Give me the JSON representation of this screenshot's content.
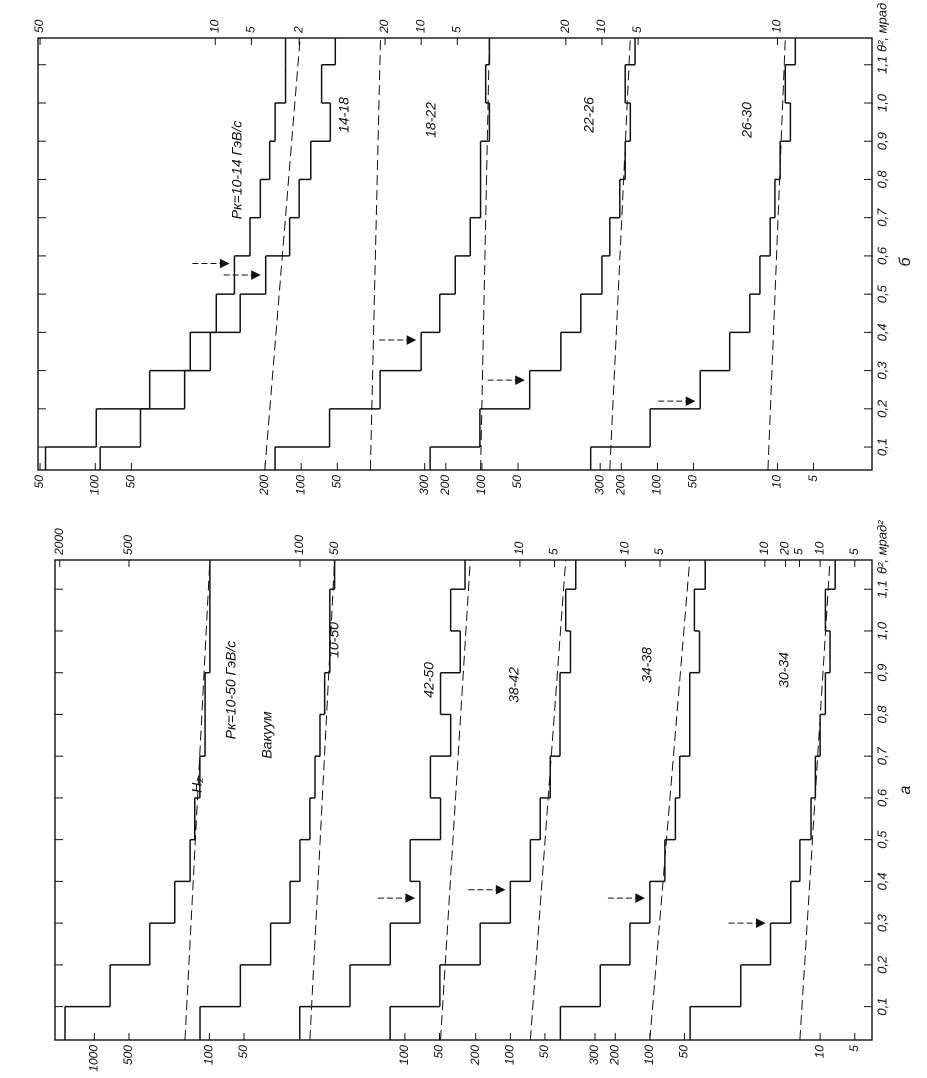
{
  "panels": [
    {
      "label": "б",
      "axis_label": "θ², мрад",
      "thlim": [
        0.04,
        1.17
      ],
      "thticks": [
        {
          "value": 0.1,
          "label": "0,1"
        },
        {
          "value": 0.2,
          "label": "0,2"
        },
        {
          "value": 0.3,
          "label": "0,3"
        },
        {
          "value": 0.4,
          "label": "0,4"
        },
        {
          "value": 0.5,
          "label": "0,5"
        },
        {
          "value": 0.6,
          "label": "0,6"
        },
        {
          "value": 0.7,
          "label": "0,7"
        },
        {
          "value": 0.8,
          "label": "0,8"
        },
        {
          "value": 0.9,
          "label": "0,9"
        },
        {
          "value": 1.0,
          "label": "1,0"
        },
        {
          "value": 1.1,
          "label": "1,1"
        }
      ],
      "bins": [
        0.04,
        0.1,
        0.2,
        0.3,
        0.4,
        0.5,
        0.6,
        0.7,
        0.8,
        0.9,
        1.0,
        1.1,
        1.17
      ],
      "plots": [
        {
          "labels": [
            "Pк=10-14 ГэВ/с"
          ],
          "lim": [
            52,
            5.84e-06
          ],
          "ticks": [
            50
          ],
          "top_ticks": [
            50
          ],
          "counts": [
            45,
            17,
            6.1,
            2.8,
            1.7,
            1.2,
            0.89,
            0.73,
            0.61,
            0.55,
            0.45,
            0.45
          ],
          "background": [
            0.67,
            0.34
          ],
          "arrow": 0.58
        },
        {
          "labels": [
            "14-18"
          ],
          "lim": [
            300,
            3.37e-05
          ],
          "ticks": [
            100,
            50
          ],
          "top_ticks": [
            10,
            5,
            2
          ],
          "counts": [
            91,
            42,
            18,
            11,
            6.2,
            3.8,
            2.4,
            2.0,
            1.6,
            1.1,
            1.3,
            1.0
          ],
          "background": [
            0.51,
            0.42
          ],
          "arrow": 0.55
        },
        {
          "labels": [
            "18-22"
          ],
          "lim": [
            15600,
            0.00175
          ],
          "ticks": [
            200,
            100,
            50
          ],
          "top_ticks": [
            20,
            10,
            5
          ],
          "counts": [
            165,
            58,
            22,
            10,
            7.0,
            5.2,
            3.9,
            3.2,
            3.2,
            2.7,
            2.9,
            2.7
          ],
          "background": [
            3.2,
            2.7
          ],
          "arrow": 0.38
        },
        {
          "labels": [
            "22-26"
          ],
          "lim": [
            500000,
            0.0562
          ],
          "ticks": [
            300,
            200,
            100,
            50
          ],
          "top_ticks": [
            20,
            10,
            5
          ],
          "counts": [
            270,
            104,
            40,
            22,
            15,
            10,
            8.6,
            7.1,
            6.4,
            5.8,
            6.4,
            5.3
          ],
          "background": [
            8.6,
            5.8
          ],
          "arrow": 0.275
        },
        {
          "labels": [
            "26-30"
          ],
          "lim": [
            14500000,
            1.63
          ],
          "ticks": [
            300,
            200,
            100,
            50,
            10,
            5
          ],
          "top_ticks": [
            10
          ],
          "counts": [
            360,
            115,
            44,
            25,
            17,
            14,
            11.5,
            10.5,
            9.5,
            7.8,
            8.6,
            7.1
          ],
          "background": [
            12,
            8.6
          ],
          "arrow": 0.22
        }
      ]
    },
    {
      "label": "а",
      "axis_label": "θ², мрад²",
      "thlim": [
        0.02,
        1.17
      ],
      "thticks": [
        {
          "value": 0.1,
          "label": "0,1"
        },
        {
          "value": 0.2,
          "label": "0,2"
        },
        {
          "value": 0.3,
          "label": "0,3"
        },
        {
          "value": 0.4,
          "label": "0,4"
        },
        {
          "value": 0.5,
          "label": "0,5"
        },
        {
          "value": 0.6,
          "label": "0,6"
        },
        {
          "value": 0.7,
          "label": "0,7"
        },
        {
          "value": 0.8,
          "label": "0,8"
        },
        {
          "value": 0.9,
          "label": "0,9"
        },
        {
          "value": 1.0,
          "label": "1,0"
        },
        {
          "value": 1.1,
          "label": "1,1"
        }
      ],
      "bins": [
        0.02,
        0.1,
        0.2,
        0.3,
        0.4,
        0.5,
        0.6,
        0.7,
        0.8,
        0.9,
        1.0,
        1.1,
        1.17
      ],
      "plots": [
        {
          "labels": [
            "Pк=10-50 ГэВ/с",
            "H₂"
          ],
          "lim": [
            2200,
            0.000173
          ],
          "ticks": [
            1000,
            500,
            100,
            50
          ],
          "top_ticks": [
            2000,
            500
          ],
          "counts": [
            1800,
            730,
            330,
            200,
            147,
            134,
            121,
            109,
            109,
            99,
            99,
            99
          ],
          "background": [
            163,
            99
          ]
        },
        {
          "labels": [
            "10-50",
            "Вакуум"
          ],
          "lim": [
            13500,
            0.00106
          ],
          "top_ticks": [
            100,
            50
          ],
          "counts": [
            740,
            330,
            180,
            122,
            100,
            82,
            74,
            67,
            61,
            55,
            55,
            50
          ],
          "background": [
            82,
            50
          ]
        },
        {
          "labels": [
            "42-50"
          ],
          "lim": [
            110000,
            0.0087
          ],
          "ticks": [
            100,
            50
          ],
          "top_ticks": [
            10,
            5
          ],
          "counts": [
            820,
            300,
            134,
            74,
            90,
            49,
            60,
            40,
            49,
            33,
            40,
            30
          ],
          "background": [
            49,
            27
          ],
          "arrow": 0.36
        },
        {
          "labels": [
            "38-42"
          ],
          "lim": [
            910000,
            0.0717
          ],
          "ticks": [
            200,
            100,
            50
          ],
          "top_ticks": [
            10,
            5
          ],
          "counts": [
            1110,
            410,
            183,
            100,
            67,
            55,
            45,
            37,
            37,
            30,
            33,
            27
          ],
          "background": [
            67,
            33
          ],
          "arrow": 0.38
        },
        {
          "labels": [
            "34-38"
          ],
          "lim": [
            14900000,
            1.17
          ],
          "ticks": [
            300,
            200,
            100,
            50
          ],
          "top_ticks": [
            10,
            5
          ],
          "counts": [
            600,
            270,
            149,
            100,
            74,
            60,
            55,
            45,
            45,
            37,
            41,
            33
          ],
          "background": [
            100,
            45
          ],
          "arrow": 0.36
        },
        {
          "labels": [
            "30-34"
          ],
          "lim": [
            44900000,
            3.54
          ],
          "ticks": [
            10,
            5
          ],
          "top_ticks": [
            20,
            10,
            5
          ],
          "counts": [
            135,
            49,
            27,
            18,
            15,
            12,
            11,
            10,
            9.0,
            8.2,
            9.0,
            7.4
          ],
          "background": [
            15,
            8.2
          ],
          "arrow": 0.3
        }
      ]
    }
  ]
}
